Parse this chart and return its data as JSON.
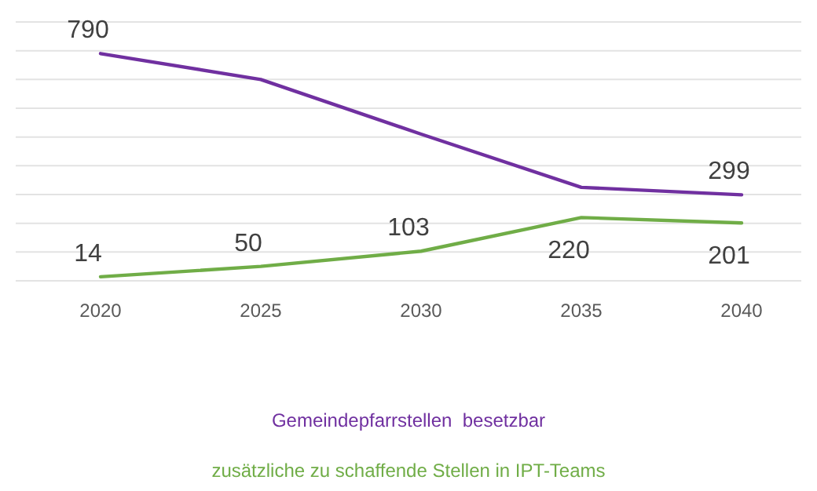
{
  "chart_data": {
    "type": "line",
    "categories": [
      "2020",
      "2025",
      "2030",
      "2035",
      "2040"
    ],
    "series": [
      {
        "name": "Gemeindepfarrstellen  besetzbar",
        "color": "#7030a0",
        "values": [
          790,
          700,
          510,
          325,
          299
        ],
        "value_labels": [
          "790",
          null,
          null,
          null,
          "299"
        ]
      },
      {
        "name": "zusätzliche zu schaffende Stellen in IPT-Teams",
        "color": "#70ad47",
        "values": [
          14,
          50,
          103,
          220,
          201
        ],
        "value_labels": [
          "14",
          "50",
          "103",
          "220",
          "201"
        ]
      }
    ],
    "ylim": [
      0,
      900
    ],
    "yticks": [
      {
        "value": 0,
        "label": null
      },
      {
        "value": 100,
        "label": null
      },
      {
        "value": 200,
        "label": null
      },
      {
        "value": 300,
        "label": null
      },
      {
        "value": 400,
        "label": null
      },
      {
        "value": 500,
        "label": null
      },
      {
        "value": 600,
        "label": null
      },
      {
        "value": 700,
        "label": null
      },
      {
        "value": 800,
        "label": null
      },
      {
        "value": 900,
        "label": null
      }
    ],
    "grid": "y",
    "legend": "bottom",
    "tick_labels": "x",
    "marker": "none",
    "line_style": "solid"
  }
}
